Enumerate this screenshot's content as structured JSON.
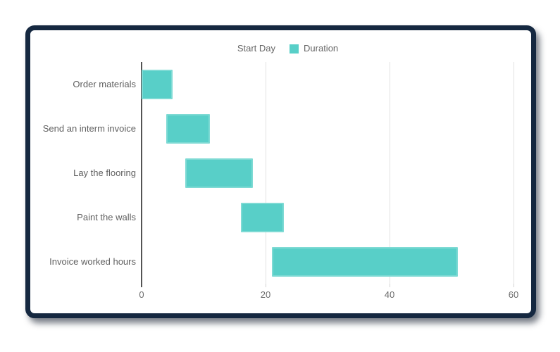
{
  "window": {
    "description": "framed chart card",
    "frame_color": "#152840",
    "background": "#ffffff"
  },
  "legend": {
    "position": "top",
    "items": [
      {
        "label": "Start Day",
        "swatch_color": "#ffffff"
      },
      {
        "label": "Duration",
        "swatch_color": "#58cfc8"
      }
    ]
  },
  "chart_data": {
    "type": "bar",
    "subtype": "gantt-horizontal-floating-bars",
    "title": "",
    "xlabel": "",
    "ylabel": "",
    "categories": [
      "Order materials",
      "Send an interm invoice",
      "Lay the flooring",
      "Paint the walls",
      "Invoice worked hours"
    ],
    "series": [
      {
        "name": "Start Day",
        "values": [
          0,
          4,
          7,
          16,
          21
        ],
        "color": "#ffffff"
      },
      {
        "name": "Duration",
        "values": [
          5,
          7,
          11,
          7,
          30
        ],
        "color": "#58cfc8"
      }
    ],
    "bars": [
      {
        "task": "Order materials",
        "start": 0,
        "end": 5
      },
      {
        "task": "Send an interm invoice",
        "start": 4,
        "end": 11
      },
      {
        "task": "Lay the flooring",
        "start": 7,
        "end": 18
      },
      {
        "task": "Paint the walls",
        "start": 16,
        "end": 23
      },
      {
        "task": "Invoice worked hours",
        "start": 21,
        "end": 51
      }
    ],
    "xlim": [
      0,
      60
    ],
    "x_ticks": [
      0,
      20,
      40,
      60
    ],
    "grid": "vertical-only",
    "legend_position": "top",
    "colors": {
      "bar_fill": "#58cfc8",
      "bar_border": "#7edad4",
      "gridline": "#e2e2e2",
      "zero_line": "#545454",
      "tick_text": "#6b6b6b",
      "category_text": "#606060",
      "legend_text": "#666666"
    }
  }
}
